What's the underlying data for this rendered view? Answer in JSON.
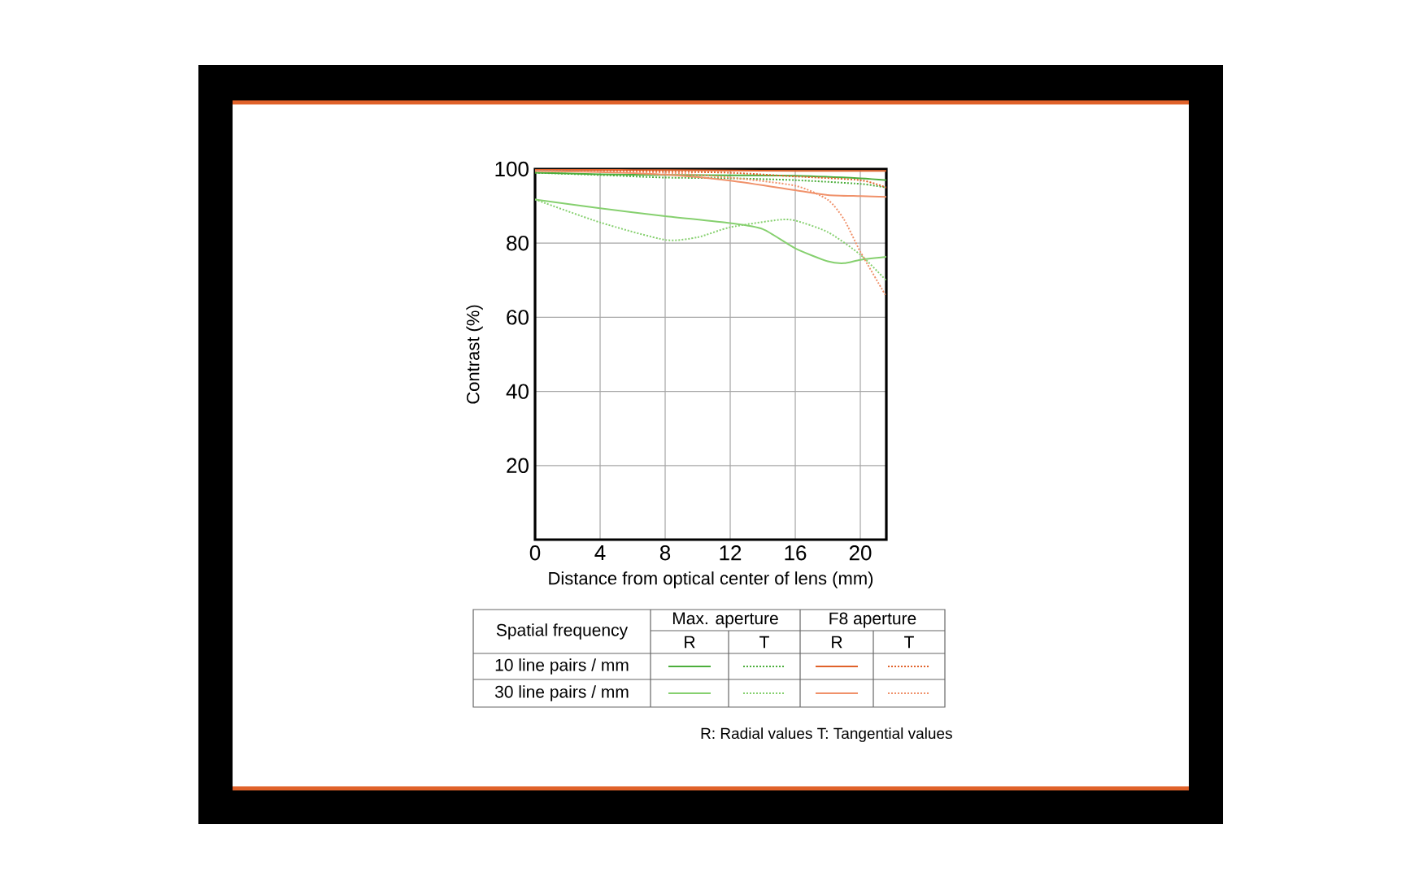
{
  "chart_data": {
    "type": "line",
    "xlabel": "Distance from optical center of lens (mm)",
    "ylabel": "Contrast (%)",
    "xlim": [
      0,
      21.6
    ],
    "ylim": [
      0,
      100
    ],
    "xticks": [
      0,
      4,
      8,
      12,
      16,
      20
    ],
    "yticks": [
      20,
      40,
      60,
      80,
      100
    ],
    "grid": true,
    "marker": "none",
    "line_style": "solid",
    "annotations": [
      "Spatial frequency",
      "Max. aperture",
      "F8 aperture",
      "R",
      "T",
      "R",
      "T",
      "10 line pairs / mm",
      "30 line pairs / mm",
      "R: Radial values  T: Tangential values"
    ],
    "series": [
      {
        "color": "#4cae3c",
        "x": [
          0,
          4,
          8,
          12,
          16,
          20,
          21.6
        ],
        "values": [
          99,
          98.6,
          98.4,
          98.3,
          98.2,
          97.5,
          97
        ]
      },
      {
        "color": "#4cae3c",
        "line_style": "dotted",
        "x": [
          0,
          4,
          8,
          12,
          16,
          20,
          21.6
        ],
        "values": [
          99,
          98.4,
          97.7,
          97.5,
          97,
          96,
          95
        ]
      },
      {
        "color": "#e0622a",
        "x": [
          0,
          4,
          8,
          12,
          16,
          20,
          21.6
        ],
        "values": [
          100,
          99.8,
          99.7,
          99.6,
          99.5,
          99.5,
          99.5
        ]
      },
      {
        "color": "#e0622a",
        "line_style": "dotted",
        "x": [
          0,
          4,
          8,
          12,
          16,
          20,
          21.6
        ],
        "values": [
          100,
          99.6,
          99.3,
          99,
          98,
          97,
          95
        ]
      },
      {
        "color": "#86d06f",
        "x": [
          0,
          4,
          8,
          12,
          14,
          16,
          18,
          19,
          20,
          21.6
        ],
        "values": [
          91.8,
          89.4,
          87.3,
          85.4,
          83.8,
          78.6,
          75.1,
          74.6,
          75.5,
          76.3
        ]
      },
      {
        "color": "#86d06f",
        "line_style": "dotted",
        "x": [
          0,
          4,
          8,
          10,
          12,
          15,
          16,
          18,
          20,
          21.6
        ],
        "values": [
          91.8,
          85.6,
          80.9,
          81.6,
          84.3,
          86.3,
          86.1,
          83,
          76.9,
          69.9
        ]
      },
      {
        "color": "#f0916a",
        "x": [
          0,
          4,
          8,
          12,
          16,
          18,
          20,
          21.6
        ],
        "values": [
          99.5,
          99.2,
          98.5,
          96.9,
          94.3,
          93,
          92.7,
          92.5
        ]
      },
      {
        "color": "#f0916a",
        "line_style": "dotted",
        "x": [
          0,
          4,
          8,
          12,
          16,
          18,
          19,
          20,
          21.6
        ],
        "values": [
          99.5,
          99.3,
          99,
          97.7,
          95.5,
          91.7,
          86.4,
          77.7,
          65.6
        ]
      }
    ]
  }
}
